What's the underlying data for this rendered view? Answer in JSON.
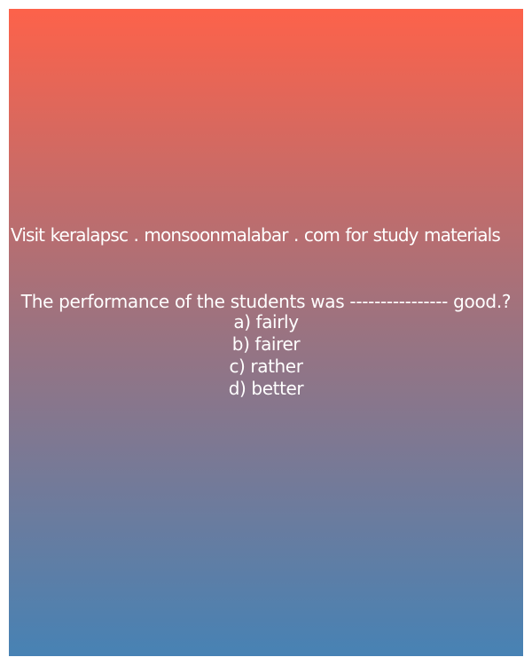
{
  "promo": {
    "text": "Visit keralapsc . monsoonmalabar . com for study materials"
  },
  "question": {
    "text": "The performance of the students was ---------------- good.?",
    "options": [
      "a) fairly",
      "b) fairer",
      "c) rather",
      "d) better"
    ]
  },
  "colors": {
    "gradient_top": "#fd624a",
    "gradient_bottom": "#4782b4",
    "text": "#ffffff"
  }
}
